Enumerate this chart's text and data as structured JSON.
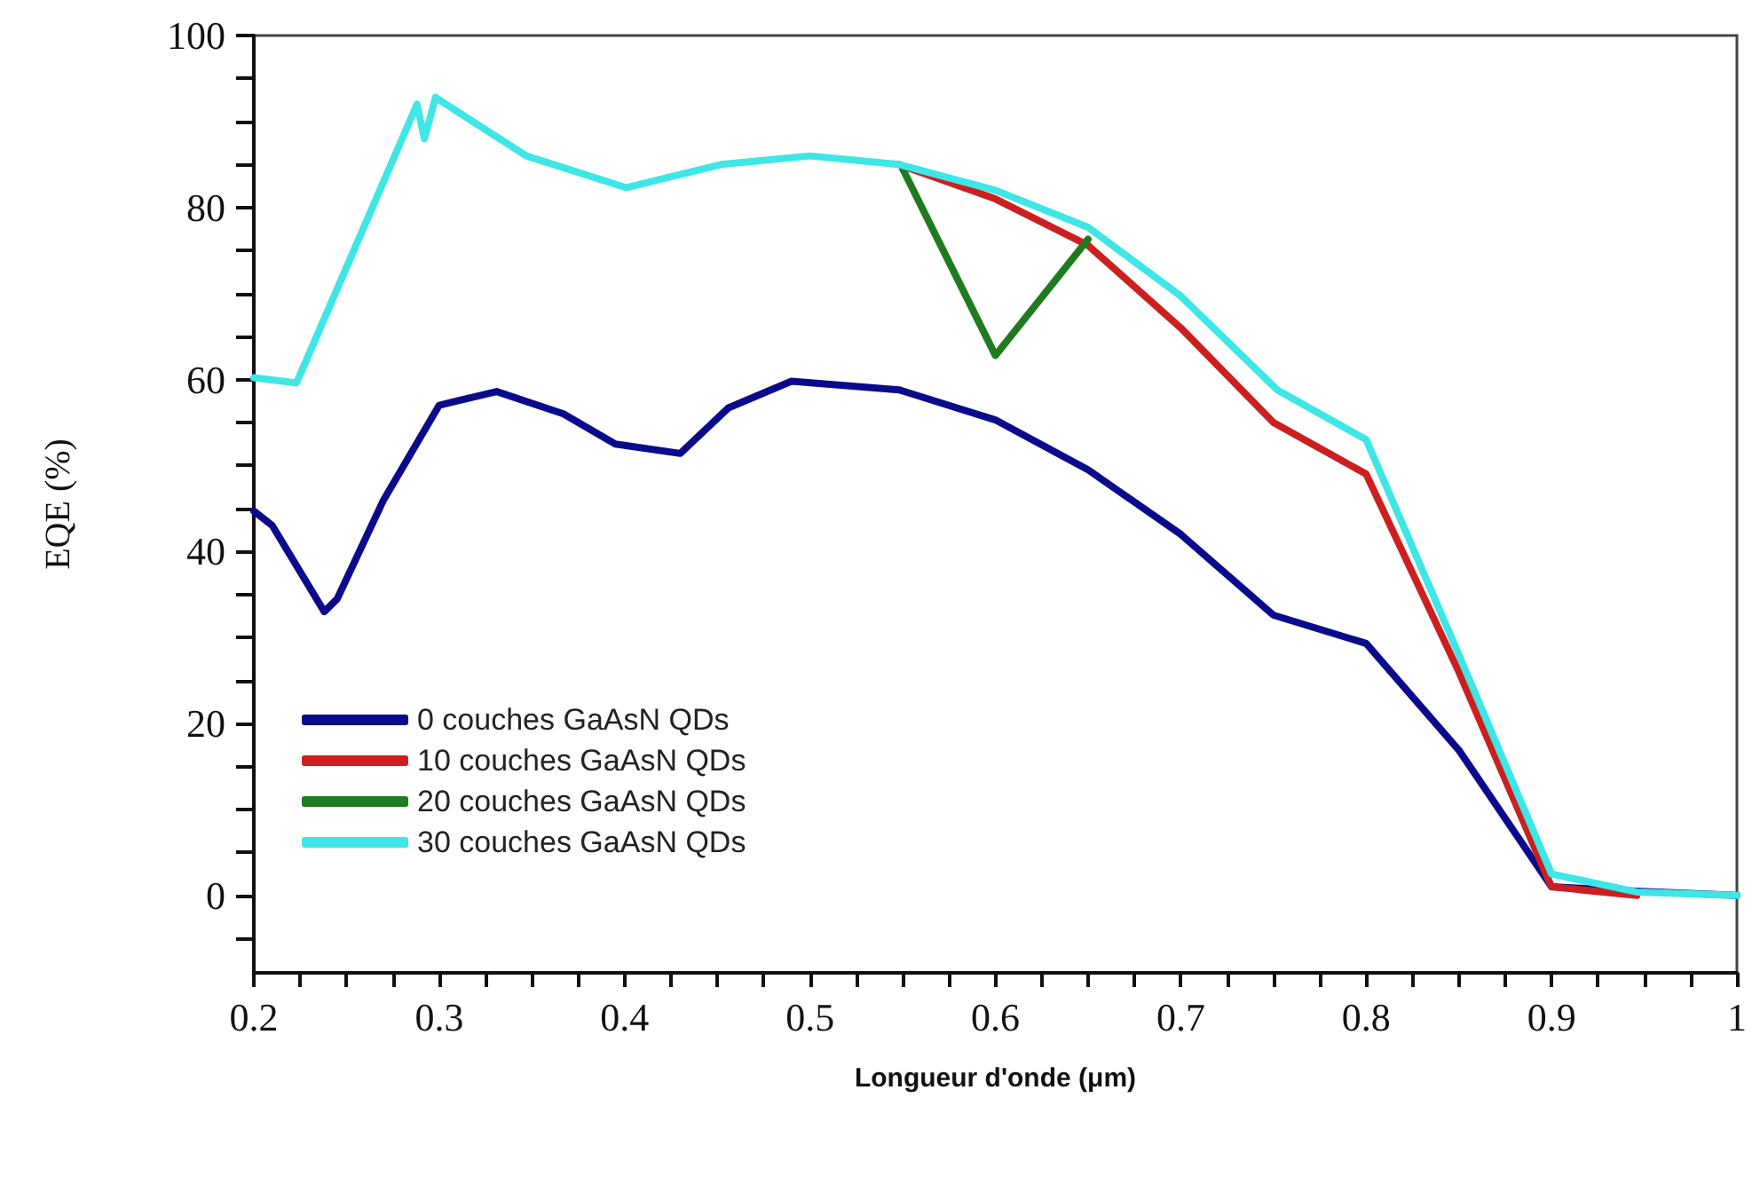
{
  "chart_data": {
    "type": "line",
    "xlabel": "Longueur d'onde (μm)",
    "ylabel": "EQE (%)",
    "xlim": [
      0.2,
      1
    ],
    "ylim": [
      -9,
      100
    ],
    "xticks": [
      0.2,
      {
        "value": 0.225,
        "label": null
      },
      {
        "value": 0.25,
        "label": null
      },
      {
        "value": 0.275,
        "label": null
      },
      0.3,
      {
        "value": 0.325,
        "label": null
      },
      {
        "value": 0.35,
        "label": null
      },
      {
        "value": 0.375,
        "label": null
      },
      0.4,
      {
        "value": 0.425,
        "label": null
      },
      {
        "value": 0.45,
        "label": null
      },
      {
        "value": 0.475,
        "label": null
      },
      0.5,
      {
        "value": 0.525,
        "label": null
      },
      {
        "value": 0.55,
        "label": null
      },
      {
        "value": 0.575,
        "label": null
      },
      0.6,
      {
        "value": 0.625,
        "label": null
      },
      {
        "value": 0.65,
        "label": null
      },
      {
        "value": 0.675,
        "label": null
      },
      0.7,
      {
        "value": 0.725,
        "label": null
      },
      {
        "value": 0.75,
        "label": null
      },
      {
        "value": 0.775,
        "label": null
      },
      0.8,
      {
        "value": 0.825,
        "label": null
      },
      {
        "value": 0.85,
        "label": null
      },
      {
        "value": 0.875,
        "label": null
      },
      0.9,
      {
        "value": 0.925,
        "label": null
      },
      {
        "value": 0.95,
        "label": null
      },
      {
        "value": 0.975,
        "label": null
      },
      1
    ],
    "yticks": [
      {
        "value": -5,
        "label": null
      },
      0,
      {
        "value": 5,
        "label": null
      },
      {
        "value": 10,
        "label": null
      },
      {
        "value": 15,
        "label": null
      },
      20,
      {
        "value": 25,
        "label": null
      },
      {
        "value": 30,
        "label": null
      },
      {
        "value": 35,
        "label": null
      },
      40,
      {
        "value": 45,
        "label": null
      },
      {
        "value": 50,
        "label": null
      },
      {
        "value": 55,
        "label": null
      },
      60,
      {
        "value": 65,
        "label": null
      },
      {
        "value": 70,
        "label": null
      },
      {
        "value": 75,
        "label": null
      },
      80,
      {
        "value": 85,
        "label": null
      },
      {
        "value": 90,
        "label": null
      },
      {
        "value": 95,
        "label": null
      },
      100
    ],
    "grid": false,
    "legend": "bottom left",
    "marker": "none",
    "line_style": "solid",
    "series": [
      {
        "name": "0 couches GaAsN QDs",
        "color": "#0a0a8c",
        "x": [
          0.2,
          0.21,
          0.238,
          0.245,
          0.27,
          0.3,
          0.331,
          0.367,
          0.395,
          0.43,
          0.456,
          0.49,
          0.548,
          0.6,
          0.65,
          0.7,
          0.75,
          0.8,
          0.85,
          0.9,
          0.946,
          1
        ],
        "values": [
          44.7,
          43,
          33,
          34.5,
          46,
          57,
          58.6,
          56,
          52.5,
          51.4,
          56.7,
          59.8,
          58.8,
          55.3,
          49.5,
          42,
          32.6,
          29.3,
          16.9,
          1,
          0.5,
          0
        ]
      },
      {
        "name": "10 couches GaAsN QDs",
        "color": "#cc1f1f",
        "x": [
          0.548,
          0.6,
          0.65,
          0.7,
          0.75,
          0.8,
          0.85,
          0.9,
          0.946
        ],
        "values": [
          85,
          81,
          75.6,
          66,
          55,
          49,
          26,
          1,
          0
        ]
      },
      {
        "name": "20 couches GaAsN QDs",
        "color": "#1e7b1e",
        "x": [
          0.55,
          0.6,
          0.65
        ],
        "values": [
          84.5,
          62.8,
          76.3
        ]
      },
      {
        "name": "30 couches GaAsN QDs",
        "color": "#3ee6e6",
        "x": [
          0.2,
          0.223,
          0.288,
          0.292,
          0.298,
          0.347,
          0.401,
          0.452,
          0.5,
          0.548,
          0.6,
          0.65,
          0.7,
          0.752,
          0.8,
          0.85,
          0.9,
          0.946,
          1
        ],
        "values": [
          60.2,
          59.6,
          92,
          88,
          92.8,
          86,
          82.3,
          85,
          86,
          85,
          82,
          77.7,
          69.7,
          58.8,
          53,
          28,
          2.5,
          0.4,
          0
        ]
      }
    ]
  }
}
